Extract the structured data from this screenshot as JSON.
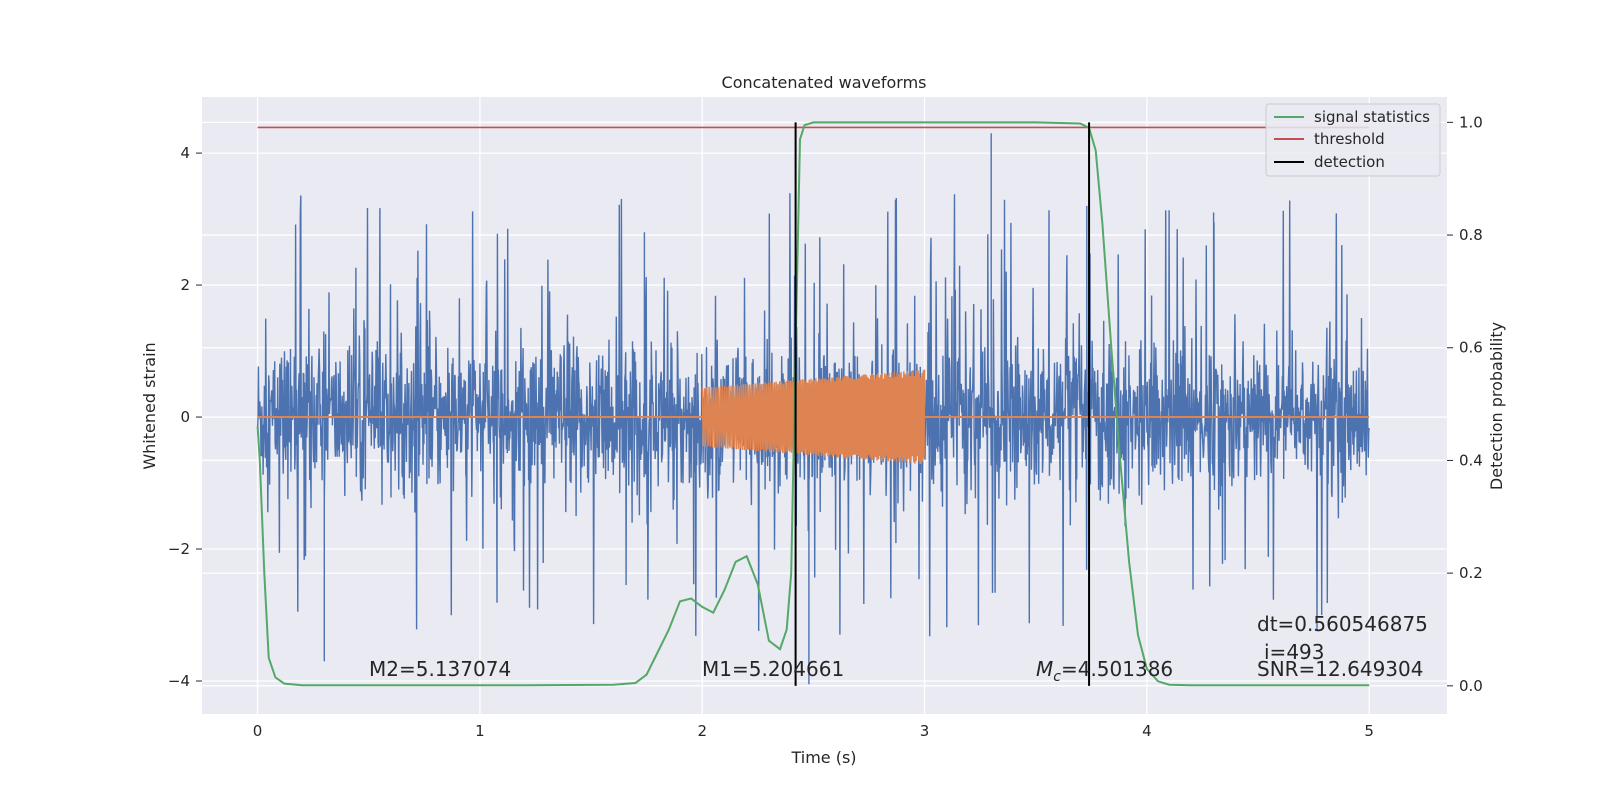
{
  "chart_data": {
    "type": "line",
    "title": "Concatenated waveforms",
    "xlabel": "Time (s)",
    "ylabel": "Whitened strain",
    "y2label": "Detection probability",
    "xlim": [
      -0.25,
      5.35
    ],
    "ylim": [
      -4.5,
      4.85
    ],
    "y2lim": [
      -0.05,
      1.045
    ],
    "x_ticks": [
      0,
      1,
      2,
      3,
      4,
      5
    ],
    "y_ticks": [
      -4,
      -2,
      0,
      2,
      4
    ],
    "y2_ticks": [
      0.0,
      0.2,
      0.4,
      0.6,
      0.8,
      1.0
    ],
    "y_tick_labels": [
      "−4",
      "−2",
      "0",
      "2",
      "4"
    ],
    "y2_tick_labels": [
      "0.0",
      "0.2",
      "0.4",
      "0.6",
      "0.8",
      "1.0"
    ],
    "grid": true,
    "legend_position": "top-right",
    "colors": {
      "noise": "#4c72b0",
      "injection": "#dd8452",
      "signal_statistics": "#55a868",
      "threshold": "#c44e52",
      "detection": "#000000",
      "plot_bg": "#eaeaf2"
    },
    "series": [
      {
        "name": "",
        "role": "whitened strain (noise + signal)",
        "axis": "left",
        "x_range": [
          0,
          5
        ],
        "typical_band": [
          -0.75,
          0.75
        ],
        "peak_max": 4.4,
        "peak_min": -4.1
      },
      {
        "name": "",
        "role": "injected waveform",
        "axis": "left",
        "x_range": [
          0,
          5
        ],
        "active_range": [
          2.0,
          3.0
        ],
        "amplitude_start": 0.45,
        "amplitude_end": 0.72
      },
      {
        "name": "signal statistics",
        "axis": "right",
        "x": [
          0.0,
          0.01,
          0.03,
          0.05,
          0.08,
          0.12,
          0.2,
          0.4,
          0.8,
          1.2,
          1.6,
          1.7,
          1.75,
          1.8,
          1.85,
          1.9,
          1.95,
          2.0,
          2.05,
          2.1,
          2.15,
          2.2,
          2.25,
          2.3,
          2.35,
          2.38,
          2.4,
          2.42,
          2.44,
          2.46,
          2.5,
          2.6,
          3.0,
          3.5,
          3.7,
          3.74,
          3.77,
          3.8,
          3.84,
          3.88,
          3.92,
          3.96,
          4.0,
          4.05,
          4.1,
          4.2,
          4.5,
          5.0
        ],
        "values": [
          0.46,
          0.4,
          0.2,
          0.05,
          0.015,
          0.004,
          0.001,
          0.001,
          0.001,
          0.001,
          0.002,
          0.005,
          0.02,
          0.06,
          0.1,
          0.15,
          0.155,
          0.14,
          0.13,
          0.17,
          0.22,
          0.23,
          0.18,
          0.08,
          0.065,
          0.1,
          0.2,
          0.6,
          0.97,
          0.995,
          1.0,
          1.0,
          1.0,
          1.0,
          0.998,
          0.99,
          0.95,
          0.82,
          0.6,
          0.4,
          0.22,
          0.09,
          0.03,
          0.008,
          0.002,
          0.001,
          0.001,
          0.001
        ]
      },
      {
        "name": "threshold",
        "axis": "right",
        "value": 0.991
      },
      {
        "name": "detection",
        "axis": "right",
        "x": [
          2.42,
          3.74
        ]
      }
    ],
    "legend": [
      "signal statistics",
      "threshold",
      "detection"
    ],
    "annotations": {
      "m2": "M2=5.137074",
      "m1": "M1=5.204661",
      "mc_symbol": "M",
      "mc_sub": "c",
      "mc_value": "=4.501386",
      "dt": "dt=0.560546875",
      "i": "i=493",
      "snr": "SNR=12.649304"
    }
  }
}
